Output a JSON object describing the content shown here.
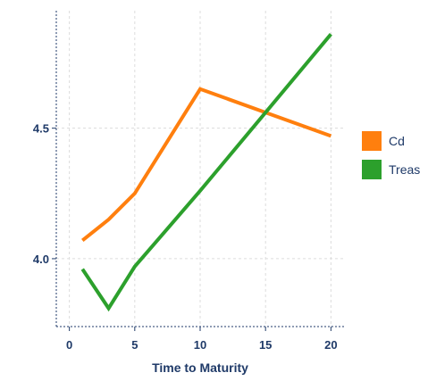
{
  "chart_data": {
    "type": "line",
    "xlabel": "Time to Maturity",
    "ylabel": "",
    "xlim": [
      -1,
      21
    ],
    "ylim": [
      3.74,
      4.95
    ],
    "x_ticks": [
      0,
      5,
      10,
      15,
      20
    ],
    "x_tick_labels": [
      "0",
      "5",
      "10",
      "15",
      "20"
    ],
    "y_ticks": [
      4.0,
      4.5
    ],
    "y_tick_labels": [
      "4.0",
      "4.5"
    ],
    "grid": true,
    "legend_position": "right",
    "series": [
      {
        "name": "Cd",
        "color": "#ff7f0e",
        "x": [
          1,
          3,
          5,
          10,
          20
        ],
        "y": [
          4.07,
          4.15,
          4.25,
          4.65,
          4.47
        ]
      },
      {
        "name": "Treas",
        "color": "#2ca02c",
        "x": [
          1,
          3,
          5,
          10,
          20
        ],
        "y": [
          3.96,
          3.81,
          3.97,
          4.26,
          4.86
        ]
      }
    ]
  }
}
